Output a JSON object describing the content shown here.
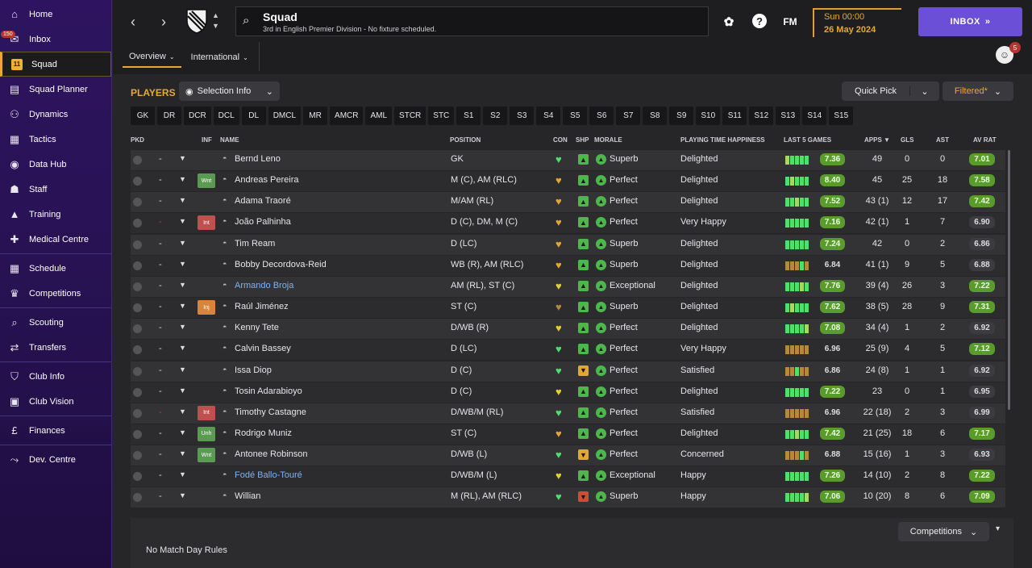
{
  "sidebar": {
    "items": [
      {
        "label": "Home",
        "icon": "home-icon",
        "glyph": "⌂"
      },
      {
        "label": "Inbox",
        "icon": "inbox-icon",
        "glyph": "✉",
        "badge": "150"
      },
      {
        "label": "Squad",
        "icon": "squad-kit-icon",
        "glyph": "11",
        "active": true
      },
      {
        "label": "Squad Planner",
        "icon": "clipboard-icon",
        "glyph": "▤"
      },
      {
        "label": "Dynamics",
        "icon": "dynamics-icon",
        "glyph": "⚇"
      },
      {
        "label": "Tactics",
        "icon": "tactics-icon",
        "glyph": "▦"
      },
      {
        "label": "Data Hub",
        "icon": "data-hub-icon",
        "glyph": "◉"
      },
      {
        "label": "Staff",
        "icon": "staff-icon",
        "glyph": "☗"
      },
      {
        "label": "Training",
        "icon": "training-icon",
        "glyph": "▲"
      },
      {
        "label": "Medical Centre",
        "icon": "medical-icon",
        "glyph": "✚"
      },
      {
        "label": "Schedule",
        "icon": "calendar-icon",
        "glyph": "▦"
      },
      {
        "label": "Competitions",
        "icon": "trophy-icon",
        "glyph": "♛"
      },
      {
        "label": "Scouting",
        "icon": "search-icon",
        "glyph": "⌕"
      },
      {
        "label": "Transfers",
        "icon": "transfer-icon",
        "glyph": "⇄"
      },
      {
        "label": "Club Info",
        "icon": "shield-icon",
        "glyph": "⛉"
      },
      {
        "label": "Club Vision",
        "icon": "briefcase-icon",
        "glyph": "▣"
      },
      {
        "label": "Finances",
        "icon": "finances-icon",
        "glyph": "£"
      },
      {
        "label": "Dev. Centre",
        "icon": "dev-centre-icon",
        "glyph": "⤳"
      }
    ]
  },
  "header": {
    "title": "Squad",
    "subtitle": "3rd in English Premier Division - No fixture scheduled.",
    "date_time": "Sun 00:00",
    "date": "26 May 2024",
    "inbox_label": "INBOX",
    "fm_label": "FM",
    "help_glyph": "?",
    "notif_count": "5",
    "tabs": [
      {
        "label": "Overview",
        "active": true
      },
      {
        "label": "International",
        "active": false
      }
    ]
  },
  "toolbar": {
    "players_label": "PLAYERS",
    "selection_info": "Selection Info",
    "quick_pick": "Quick Pick",
    "filtered": "Filtered*"
  },
  "positions": [
    "GK",
    "DR",
    "DCR",
    "DCL",
    "DL",
    "DMCL",
    "MR",
    "AMCR",
    "AML",
    "STCR",
    "STC",
    "S1",
    "S2",
    "S3",
    "S4",
    "S5",
    "S6",
    "S7",
    "S8",
    "S9",
    "S10",
    "S11",
    "S12",
    "S13",
    "S14",
    "S15"
  ],
  "columns": {
    "pkd": "PKD",
    "inf": "INF",
    "name": "NAME",
    "position": "POSITION",
    "con": "CON",
    "shp": "SHP",
    "morale": "MORALE",
    "pth": "PLAYING TIME HAPPINESS",
    "last5": "LAST 5 GAMES",
    "apps": "APPS",
    "gls": "GLS",
    "ast": "AST",
    "avrat": "AV RAT"
  },
  "players": [
    {
      "name": "Bernd Leno",
      "inf": "",
      "pos": "GK",
      "con": "green",
      "shp": "green",
      "morale": "Superb",
      "pth": "Delighted",
      "l5": [
        "y",
        "g",
        "g",
        "g",
        "g"
      ],
      "rat": "7.36",
      "apps": "49",
      "gls": "0",
      "ast": "0",
      "avrat": "7.01",
      "dash_red": false,
      "link": false
    },
    {
      "name": "Andreas Pereira",
      "inf": "Wnt",
      "pos": "M (C), AM (RLC)",
      "con": "orange",
      "shp": "green",
      "morale": "Perfect",
      "pth": "Delighted",
      "l5": [
        "g",
        "y",
        "g",
        "g",
        "g"
      ],
      "rat": "8.40",
      "apps": "45",
      "gls": "25",
      "ast": "18",
      "avrat": "7.58",
      "dash_red": false,
      "link": false
    },
    {
      "name": "Adama Traoré",
      "inf": "",
      "pos": "M/AM (RL)",
      "con": "orange",
      "shp": "green",
      "morale": "Perfect",
      "pth": "Delighted",
      "l5": [
        "g",
        "g",
        "y",
        "g",
        "g"
      ],
      "rat": "7.52",
      "apps": "43 (1)",
      "gls": "12",
      "ast": "17",
      "avrat": "7.42",
      "dash_red": false,
      "link": false
    },
    {
      "name": "João Palhinha",
      "inf": "Int",
      "pos": "D (C), DM, M (C)",
      "con": "orange",
      "shp": "green",
      "morale": "Perfect",
      "pth": "Very Happy",
      "l5": [
        "g",
        "g",
        "g",
        "g",
        "g"
      ],
      "rat": "7.16",
      "apps": "42 (1)",
      "gls": "1",
      "ast": "7",
      "avrat": "6.90",
      "dash_red": true,
      "link": false
    },
    {
      "name": "Tim Ream",
      "inf": "",
      "pos": "D (LC)",
      "con": "orange",
      "shp": "green",
      "morale": "Superb",
      "pth": "Delighted",
      "l5": [
        "g",
        "g",
        "g",
        "g",
        "g"
      ],
      "rat": "7.24",
      "apps": "42",
      "gls": "0",
      "ast": "2",
      "avrat": "6.86",
      "dash_red": false,
      "link": false
    },
    {
      "name": "Bobby Decordova-Reid",
      "inf": "",
      "pos": "WB (R), AM (RLC)",
      "con": "orange",
      "shp": "green",
      "morale": "Superb",
      "pth": "Delighted",
      "l5": [
        "o",
        "o",
        "o",
        "g",
        "o"
      ],
      "rat": "6.84",
      "apps": "41 (1)",
      "gls": "9",
      "ast": "5",
      "avrat": "6.88",
      "dash_red": false,
      "link": false
    },
    {
      "name": "Armando Broja",
      "inf": "",
      "pos": "AM (RL), ST (C)",
      "con": "yellow",
      "shp": "green",
      "morale": "Exceptional",
      "pth": "Delighted",
      "l5": [
        "g",
        "g",
        "g",
        "y",
        "g"
      ],
      "rat": "7.76",
      "apps": "39 (4)",
      "gls": "26",
      "ast": "3",
      "avrat": "7.22",
      "dash_red": false,
      "link": true
    },
    {
      "name": "Raúl Jiménez",
      "inf": "Inj",
      "pos": "ST (C)",
      "con": "brown",
      "shp": "green",
      "morale": "Superb",
      "pth": "Delighted",
      "l5": [
        "g",
        "y",
        "g",
        "g",
        "g"
      ],
      "rat": "7.62",
      "apps": "38 (5)",
      "gls": "28",
      "ast": "9",
      "avrat": "7.31",
      "dash_red": false,
      "link": false
    },
    {
      "name": "Kenny Tete",
      "inf": "",
      "pos": "D/WB (R)",
      "con": "yellow",
      "shp": "green",
      "morale": "Perfect",
      "pth": "Delighted",
      "l5": [
        "g",
        "g",
        "g",
        "g",
        "y"
      ],
      "rat": "7.08",
      "apps": "34 (4)",
      "gls": "1",
      "ast": "2",
      "avrat": "6.92",
      "dash_red": false,
      "link": false
    },
    {
      "name": "Calvin Bassey",
      "inf": "",
      "pos": "D (LC)",
      "con": "green",
      "shp": "green",
      "morale": "Perfect",
      "pth": "Very Happy",
      "l5": [
        "o",
        "o",
        "o",
        "o",
        "o"
      ],
      "rat": "6.96",
      "apps": "25 (9)",
      "gls": "4",
      "ast": "5",
      "avrat": "7.12",
      "dash_red": false,
      "link": false
    },
    {
      "name": "Issa Diop",
      "inf": "",
      "pos": "D (C)",
      "con": "green",
      "shp": "orange",
      "morale": "Perfect",
      "pth": "Satisfied",
      "l5": [
        "o",
        "o",
        "g",
        "o",
        "o"
      ],
      "rat": "6.86",
      "apps": "24 (8)",
      "gls": "1",
      "ast": "1",
      "avrat": "6.92",
      "dash_red": false,
      "link": false
    },
    {
      "name": "Tosin Adarabioyo",
      "inf": "",
      "pos": "D (C)",
      "con": "yellow",
      "shp": "green",
      "morale": "Perfect",
      "pth": "Delighted",
      "l5": [
        "g",
        "g",
        "g",
        "g",
        "g"
      ],
      "rat": "7.22",
      "apps": "23",
      "gls": "0",
      "ast": "1",
      "avrat": "6.95",
      "dash_red": false,
      "link": false
    },
    {
      "name": "Timothy Castagne",
      "inf": "Int",
      "pos": "D/WB/M (RL)",
      "con": "green",
      "shp": "green",
      "morale": "Perfect",
      "pth": "Satisfied",
      "l5": [
        "o",
        "o",
        "o",
        "o",
        "o"
      ],
      "rat": "6.96",
      "apps": "22 (18)",
      "gls": "2",
      "ast": "3",
      "avrat": "6.99",
      "dash_red": true,
      "link": false
    },
    {
      "name": "Rodrigo Muniz",
      "inf": "Unh",
      "pos": "ST (C)",
      "con": "orange",
      "shp": "green",
      "morale": "Perfect",
      "pth": "Delighted",
      "l5": [
        "g",
        "g",
        "y",
        "g",
        "g"
      ],
      "rat": "7.42",
      "apps": "21 (25)",
      "gls": "18",
      "ast": "6",
      "avrat": "7.17",
      "dash_red": false,
      "link": false
    },
    {
      "name": "Antonee Robinson",
      "inf": "Wnt",
      "pos": "D/WB (L)",
      "con": "green",
      "shp": "orange",
      "morale": "Perfect",
      "pth": "Concerned",
      "l5": [
        "o",
        "o",
        "o",
        "g",
        "o"
      ],
      "rat": "6.88",
      "apps": "15 (16)",
      "gls": "1",
      "ast": "3",
      "avrat": "6.93",
      "dash_red": false,
      "link": false
    },
    {
      "name": "Fodé Ballo-Touré",
      "inf": "",
      "pos": "D/WB/M (L)",
      "con": "yellow",
      "shp": "green",
      "morale": "Exceptional",
      "pth": "Happy",
      "l5": [
        "g",
        "g",
        "g",
        "g",
        "g"
      ],
      "rat": "7.26",
      "apps": "14 (10)",
      "gls": "2",
      "ast": "8",
      "avrat": "7.22",
      "dash_red": false,
      "link": true
    },
    {
      "name": "Willian",
      "inf": "",
      "pos": "M (RL), AM (RLC)",
      "con": "green",
      "shp": "red",
      "morale": "Superb",
      "pth": "Happy",
      "l5": [
        "g",
        "g",
        "g",
        "g",
        "y"
      ],
      "rat": "7.06",
      "apps": "10 (20)",
      "gls": "8",
      "ast": "6",
      "avrat": "7.09",
      "dash_red": false,
      "link": false
    }
  ],
  "footer": {
    "competitions": "Competitions",
    "rules": "No Match Day Rules"
  },
  "colors": {
    "accent": "#e8a930",
    "inbox": "#6b4fd6",
    "rating_green": "#5a9c2c",
    "sidebar": "#2e1460"
  }
}
